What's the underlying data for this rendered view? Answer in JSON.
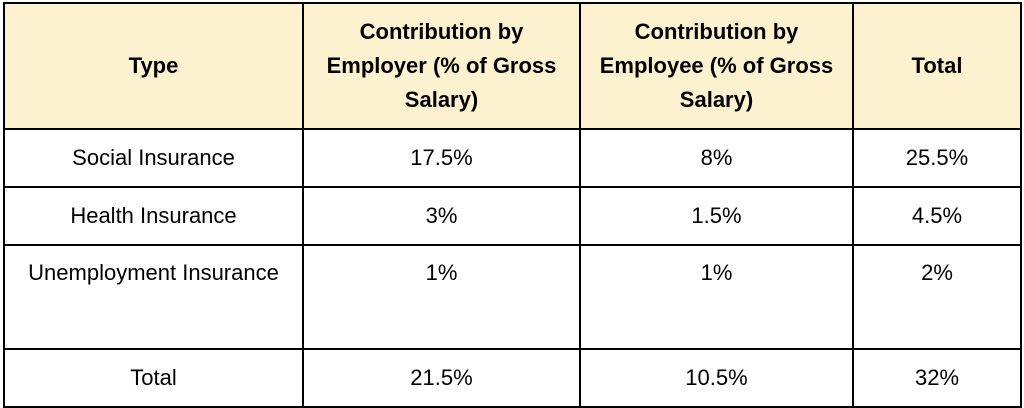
{
  "table": {
    "headers": [
      "Type",
      "Contribution by Employer (% of Gross Salary)",
      "Contribution by Employee (% of Gross Salary)",
      "Total"
    ],
    "rows": [
      [
        "Social Insurance",
        "17.5%",
        "8%",
        "25.5%"
      ],
      [
        "Health Insurance",
        "3%",
        "1.5%",
        "4.5%"
      ],
      [
        "Unemployment Insurance",
        "1%",
        "1%",
        "2%"
      ],
      [
        "Total",
        "21.5%",
        "10.5%",
        "32%"
      ]
    ]
  },
  "colors": {
    "header_background": "#fdf2cf",
    "border": "#000000"
  }
}
